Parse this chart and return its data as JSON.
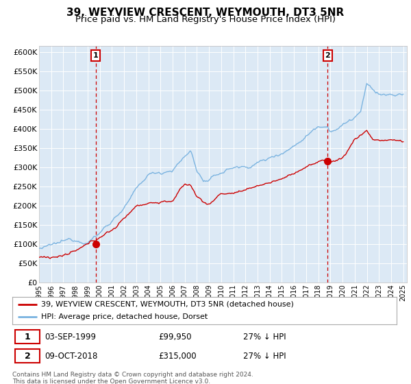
{
  "title": "39, WEYVIEW CRESCENT, WEYMOUTH, DT3 5NR",
  "subtitle": "Price paid vs. HM Land Registry's House Price Index (HPI)",
  "ylim": [
    0,
    600000
  ],
  "yticks": [
    0,
    50000,
    100000,
    150000,
    200000,
    250000,
    300000,
    350000,
    400000,
    450000,
    500000,
    550000,
    600000
  ],
  "background_color": "#dce9f5",
  "fig_bg_color": "#ffffff",
  "hpi_color": "#7ab3e0",
  "price_color": "#cc0000",
  "sale1_date_num": 1999.67,
  "sale1_price": 99950,
  "sale2_date_num": 2018.77,
  "sale2_price": 315000,
  "legend_label1": "39, WEYVIEW CRESCENT, WEYMOUTH, DT3 5NR (detached house)",
  "legend_label2": "HPI: Average price, detached house, Dorset",
  "annotation1_date": "03-SEP-1999",
  "annotation1_price": "£99,950",
  "annotation1_hpi": "27% ↓ HPI",
  "annotation2_date": "09-OCT-2018",
  "annotation2_price": "£315,000",
  "annotation2_hpi": "27% ↓ HPI",
  "footer": "Contains HM Land Registry data © Crown copyright and database right 2024.\nThis data is licensed under the Open Government Licence v3.0.",
  "title_fontsize": 11,
  "subtitle_fontsize": 9.5,
  "hpi_anchors_x": [
    1995,
    1996,
    1997,
    1998,
    1999,
    2000,
    2001,
    2002,
    2003,
    2004,
    2005,
    2006,
    2007,
    2007.5,
    2008,
    2008.5,
    2009,
    2010,
    2011,
    2012,
    2013,
    2014,
    2015,
    2016,
    2017,
    2018,
    2018.77,
    2019,
    2020,
    2021,
    2021.5,
    2022,
    2022.5,
    2023,
    2024,
    2025
  ],
  "hpi_anchors_y": [
    88000,
    90000,
    96000,
    102000,
    107000,
    130000,
    165000,
    200000,
    240000,
    278000,
    285000,
    298000,
    330000,
    345000,
    295000,
    270000,
    265000,
    285000,
    300000,
    300000,
    315000,
    325000,
    345000,
    365000,
    395000,
    425000,
    430000,
    420000,
    435000,
    455000,
    470000,
    535000,
    520000,
    510000,
    505000,
    505000
  ],
  "price_anchors_x": [
    1995,
    1996,
    1997,
    1998,
    1999,
    1999.67,
    2000,
    2001,
    2002,
    2003,
    2004,
    2005,
    2006,
    2007,
    2007.5,
    2008,
    2009,
    2010,
    2011,
    2011.5,
    2012,
    2013,
    2014,
    2015,
    2016,
    2017,
    2018,
    2018.77,
    2019,
    2020,
    2021,
    2021.5,
    2022,
    2022.5,
    2023,
    2024,
    2025
  ],
  "price_anchors_y": [
    65000,
    67000,
    72000,
    78000,
    90000,
    99950,
    112000,
    130000,
    158000,
    195000,
    205000,
    208000,
    213000,
    252000,
    250000,
    220000,
    200000,
    230000,
    232000,
    236000,
    232000,
    246000,
    255000,
    265000,
    280000,
    300000,
    308000,
    315000,
    312000,
    320000,
    370000,
    380000,
    395000,
    370000,
    370000,
    370000,
    365000
  ]
}
